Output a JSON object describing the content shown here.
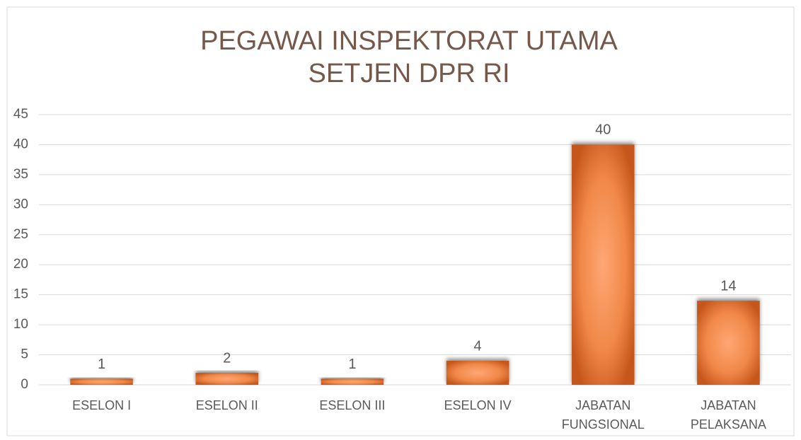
{
  "chart_data": {
    "type": "bar",
    "title": [
      "PEGAWAI INSPEKTORAT UTAMA",
      "SETJEN DPR RI"
    ],
    "categories": [
      "ESELON I",
      "ESELON II",
      "ESELON III",
      "ESELON IV",
      "JABATAN FUNGSIONAL",
      "JABATAN PELAKSANA"
    ],
    "values": [
      1,
      2,
      1,
      4,
      40,
      14
    ],
    "color": "#e07a3c",
    "ylim": [
      0,
      45
    ],
    "yticks": [
      0,
      5,
      10,
      15,
      20,
      25,
      30,
      35,
      40,
      45
    ],
    "grid": true
  }
}
